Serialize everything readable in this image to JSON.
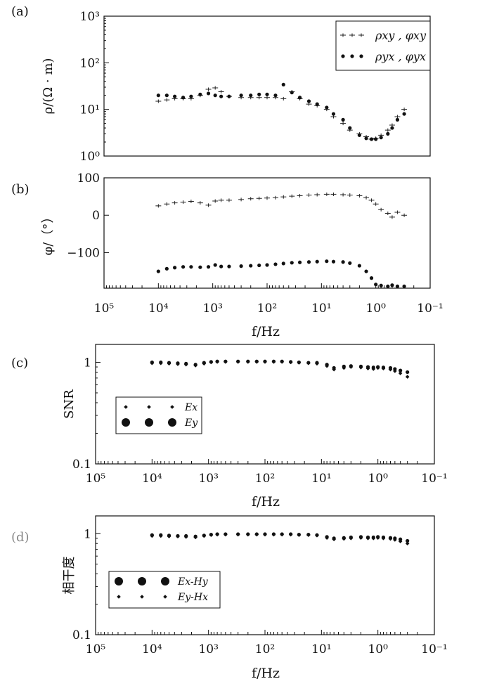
{
  "xlabel": "f/Hz",
  "chart_data": [
    {
      "id": "a",
      "type": "scatter",
      "panel_label": "(a)",
      "ylabel": "ρ/(Ω · m)",
      "yscale": "log",
      "ylim": [
        1,
        1000
      ],
      "xscale": "log-reversed",
      "xlim": [
        100000,
        0.1
      ],
      "yticks": [
        "10⁰",
        "10¹",
        "10²",
        "10³"
      ],
      "legend": {
        "placement": "top-right",
        "entries": [
          "ρxy , φxy",
          "ρyx , φyx"
        ]
      },
      "series": [
        {
          "name": "ρxy , φxy",
          "marker": "plus",
          "x": [
            10000,
            7000,
            5000,
            3500,
            2500,
            1700,
            1200,
            900,
            700,
            500,
            300,
            200,
            140,
            100,
            70,
            50,
            35,
            25,
            17,
            12,
            8,
            6,
            4,
            3,
            2,
            1.5,
            1.2,
            1,
            0.8,
            0.6,
            0.5,
            0.4,
            0.3
          ],
          "y": [
            15,
            16,
            17,
            17,
            17,
            20,
            27,
            29,
            24,
            19,
            18,
            18,
            18,
            18,
            18,
            17,
            24,
            17,
            13,
            12,
            10,
            7,
            5,
            3.6,
            3,
            2.6,
            2.3,
            2.4,
            2.8,
            3.6,
            4.6,
            7,
            10
          ]
        },
        {
          "name": "ρyx , φyx",
          "marker": "dot",
          "x": [
            10000,
            7000,
            5000,
            3500,
            2500,
            1700,
            1200,
            900,
            700,
            500,
            300,
            200,
            140,
            100,
            70,
            50,
            35,
            25,
            17,
            12,
            8,
            6,
            4,
            3,
            2,
            1.5,
            1.2,
            1,
            0.8,
            0.6,
            0.5,
            0.4,
            0.3
          ],
          "y": [
            20,
            20,
            19,
            18,
            19,
            21,
            22,
            20,
            19,
            19,
            20,
            20,
            21,
            21,
            20,
            34,
            23,
            18,
            15,
            13,
            11,
            8,
            6,
            4,
            2.8,
            2.4,
            2.3,
            2.3,
            2.5,
            3,
            4,
            6,
            8
          ]
        }
      ]
    },
    {
      "id": "b",
      "type": "scatter",
      "panel_label": "(b)",
      "ylabel": "φ/（°）",
      "yscale": "linear",
      "ylim": [
        -195,
        100
      ],
      "xscale": "log-reversed",
      "xlim": [
        100000,
        0.1
      ],
      "yticks": [
        "100",
        "0",
        "−100"
      ],
      "ytick_values": [
        100,
        0,
        -100
      ],
      "xtick_labels": [
        "10⁵",
        "10⁴",
        "10³",
        "10²",
        "10¹",
        "10⁰",
        "10⁻¹"
      ],
      "series": [
        {
          "name": "φxy",
          "marker": "plus",
          "x": [
            10000,
            7000,
            5000,
            3500,
            2500,
            1700,
            1200,
            900,
            700,
            500,
            300,
            200,
            140,
            100,
            70,
            50,
            35,
            25,
            17,
            12,
            8,
            6,
            4,
            3,
            2,
            1.5,
            1.2,
            1,
            0.8,
            0.6,
            0.5,
            0.4,
            0.3
          ],
          "y": [
            25,
            30,
            33,
            35,
            37,
            33,
            27,
            38,
            40,
            40,
            42,
            44,
            45,
            46,
            47,
            49,
            51,
            52,
            54,
            55,
            56,
            56,
            55,
            54,
            52,
            47,
            40,
            30,
            15,
            5,
            -5,
            8,
            0
          ]
        },
        {
          "name": "φyx",
          "marker": "dot",
          "x": [
            10000,
            7000,
            5000,
            3500,
            2500,
            1700,
            1200,
            900,
            700,
            500,
            300,
            200,
            140,
            100,
            70,
            50,
            35,
            25,
            17,
            12,
            8,
            6,
            4,
            3,
            2,
            1.5,
            1.2,
            1,
            0.8,
            0.6,
            0.5,
            0.4,
            0.3
          ],
          "y": [
            -150,
            -143,
            -140,
            -138,
            -138,
            -139,
            -138,
            -133,
            -137,
            -137,
            -136,
            -135,
            -134,
            -133,
            -131,
            -129,
            -127,
            -126,
            -125,
            -124,
            -123,
            -124,
            -125,
            -128,
            -135,
            -150,
            -168,
            -185,
            -188,
            -190,
            -187,
            -190,
            -190
          ]
        }
      ]
    },
    {
      "id": "c",
      "type": "scatter",
      "panel_label": "(c)",
      "ylabel": "SNR",
      "yscale": "log",
      "ylim": [
        0.1,
        1.5
      ],
      "xscale": "log-reversed",
      "xlim": [
        100000,
        0.1
      ],
      "yticks": [
        "1",
        "0.1"
      ],
      "ytick_values": [
        1,
        0.1
      ],
      "xtick_labels": [
        "10⁵",
        "10⁴",
        "10³",
        "10²",
        "10¹",
        "10⁰",
        "10⁻¹"
      ],
      "legend": {
        "placement": "bottom-left",
        "entries": [
          "Ex",
          "Ey"
        ]
      },
      "series": [
        {
          "name": "Ex",
          "marker": "diamond",
          "x": [
            10000,
            7000,
            5000,
            3500,
            2500,
            1700,
            1200,
            900,
            700,
            500,
            300,
            200,
            140,
            100,
            70,
            50,
            35,
            25,
            17,
            12,
            8,
            6,
            4,
            3,
            2,
            1.5,
            1.2,
            1,
            0.8,
            0.6,
            0.5,
            0.4,
            0.3
          ],
          "y": [
            0.98,
            0.98,
            0.97,
            0.96,
            0.95,
            0.93,
            0.97,
            1,
            1.01,
            1.01,
            1.01,
            1.01,
            1.01,
            1.01,
            1.01,
            1.01,
            1,
            0.99,
            0.98,
            0.97,
            0.92,
            0.85,
            0.88,
            0.9,
            0.89,
            0.87,
            0.86,
            0.88,
            0.87,
            0.85,
            0.82,
            0.78,
            0.72
          ]
        },
        {
          "name": "Ey",
          "marker": "dot",
          "x": [
            10000,
            7000,
            5000,
            3500,
            2500,
            1700,
            1200,
            900,
            700,
            500,
            300,
            200,
            140,
            100,
            70,
            50,
            35,
            25,
            17,
            12,
            8,
            6,
            4,
            3,
            2,
            1.5,
            1.2,
            1,
            0.8,
            0.6,
            0.5,
            0.4,
            0.3
          ],
          "y": [
            1,
            1,
            0.99,
            0.98,
            0.97,
            0.95,
            0.99,
            1.01,
            1.02,
            1.02,
            1.02,
            1.02,
            1.02,
            1.02,
            1.02,
            1.02,
            1.01,
            1,
            0.99,
            0.99,
            0.95,
            0.88,
            0.91,
            0.92,
            0.91,
            0.9,
            0.89,
            0.9,
            0.89,
            0.88,
            0.86,
            0.83,
            0.8
          ]
        }
      ]
    },
    {
      "id": "d",
      "type": "scatter",
      "panel_label": "(d)",
      "ylabel": "相干度",
      "yscale": "log",
      "ylim": [
        0.1,
        1.5
      ],
      "xscale": "log-reversed",
      "xlim": [
        100000,
        0.1
      ],
      "yticks": [
        "1",
        "0.1"
      ],
      "ytick_values": [
        1,
        0.1
      ],
      "xtick_labels": [
        "10⁵",
        "10⁴",
        "10³",
        "10²",
        "10¹",
        "10⁰",
        "10⁻¹"
      ],
      "legend": {
        "placement": "bottom-left",
        "entries": [
          "Ex-Hy",
          "Ey-Hx"
        ]
      },
      "series": [
        {
          "name": "Ex-Hy",
          "marker": "dot",
          "x": [
            10000,
            7000,
            5000,
            3500,
            2500,
            1700,
            1200,
            900,
            700,
            500,
            300,
            200,
            140,
            100,
            70,
            50,
            35,
            25,
            17,
            12,
            8,
            6,
            4,
            3,
            2,
            1.5,
            1.2,
            1,
            0.8,
            0.6,
            0.5,
            0.4,
            0.3
          ],
          "y": [
            0.97,
            0.97,
            0.96,
            0.95,
            0.95,
            0.94,
            0.96,
            0.98,
            0.99,
            0.99,
            0.99,
            0.99,
            0.99,
            0.99,
            0.99,
            0.99,
            0.99,
            0.98,
            0.98,
            0.97,
            0.93,
            0.9,
            0.91,
            0.92,
            0.93,
            0.92,
            0.92,
            0.93,
            0.92,
            0.91,
            0.9,
            0.88,
            0.85
          ]
        },
        {
          "name": "Ey-Hx",
          "marker": "diamond",
          "x": [
            10000,
            7000,
            5000,
            3500,
            2500,
            1700,
            1200,
            900,
            700,
            500,
            300,
            200,
            140,
            100,
            70,
            50,
            35,
            25,
            17,
            12,
            8,
            6,
            4,
            3,
            2,
            1.5,
            1.2,
            1,
            0.8,
            0.6,
            0.5,
            0.4,
            0.3
          ],
          "y": [
            0.95,
            0.95,
            0.94,
            0.94,
            0.93,
            0.92,
            0.95,
            0.97,
            0.98,
            0.98,
            0.98,
            0.98,
            0.98,
            0.98,
            0.98,
            0.98,
            0.98,
            0.97,
            0.97,
            0.96,
            0.91,
            0.88,
            0.89,
            0.9,
            0.91,
            0.9,
            0.9,
            0.91,
            0.9,
            0.89,
            0.87,
            0.84,
            0.8
          ]
        }
      ]
    }
  ]
}
